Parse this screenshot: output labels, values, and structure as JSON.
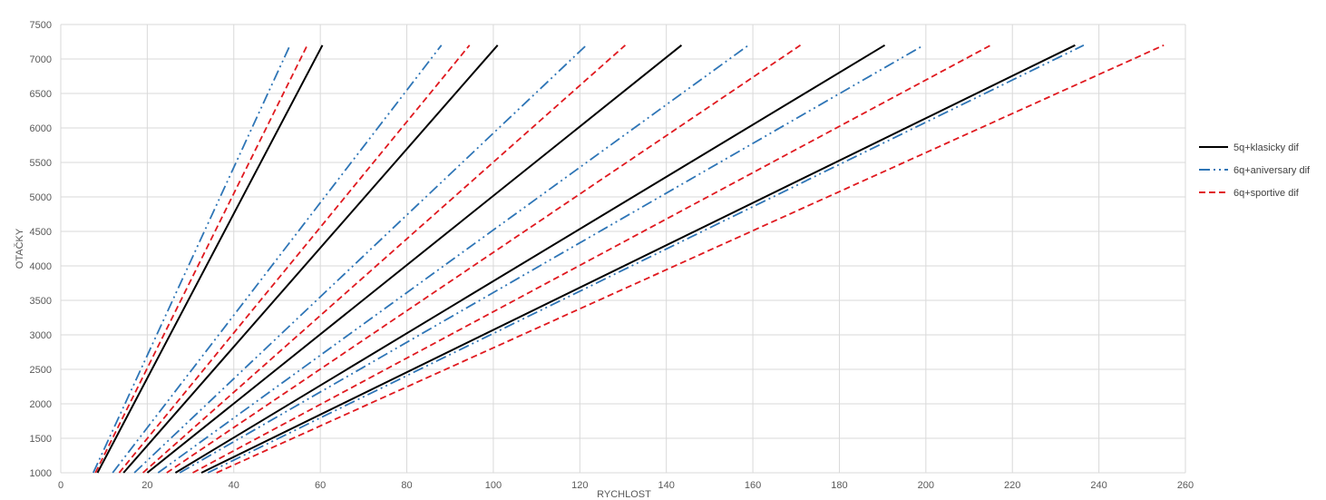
{
  "chart_data": {
    "type": "line",
    "xlabel": "RYCHLOST",
    "ylabel": "OTAČKY",
    "xlim": [
      0,
      260
    ],
    "ylim": [
      1000,
      7500
    ],
    "x_ticks": [
      0,
      20,
      40,
      60,
      80,
      100,
      120,
      140,
      160,
      180,
      200,
      220,
      240,
      260
    ],
    "y_ticks": [
      1000,
      1500,
      2000,
      2500,
      3000,
      3500,
      4000,
      4500,
      5000,
      5500,
      6000,
      6500,
      7000,
      7500
    ],
    "grid": true,
    "legend_position": "right",
    "series": [
      {
        "name": "5q+klasicky dif",
        "color": "#000000",
        "dash": "solid",
        "lines": [
          [
            [
              8.5,
              1000
            ],
            [
              60.5,
              7200
            ]
          ],
          [
            [
              14.5,
              1000
            ],
            [
              101,
              7200
            ]
          ],
          [
            [
              20,
              1000
            ],
            [
              143.5,
              7200
            ]
          ],
          [
            [
              26.5,
              1000
            ],
            [
              190.5,
              7200
            ]
          ],
          [
            [
              32.5,
              1000
            ],
            [
              234.5,
              7200
            ]
          ]
        ]
      },
      {
        "name": "6q+aniversary dif",
        "color": "#2e75b6",
        "dash": "dash-dot-dot",
        "lines": [
          [
            [
              7.5,
              1000
            ],
            [
              53,
              7200
            ]
          ],
          [
            [
              12,
              1000
            ],
            [
              88,
              7200
            ]
          ],
          [
            [
              17,
              1000
            ],
            [
              121.5,
              7200
            ]
          ],
          [
            [
              22.5,
              1000
            ],
            [
              159,
              7200
            ]
          ],
          [
            [
              27.5,
              1000
            ],
            [
              199.5,
              7200
            ]
          ],
          [
            [
              34,
              1000
            ],
            [
              236.5,
              7200
            ]
          ]
        ]
      },
      {
        "name": "6q+sportive dif",
        "color": "#e0191f",
        "dash": "dashed",
        "lines": [
          [
            [
              8,
              1000
            ],
            [
              57,
              7200
            ]
          ],
          [
            [
              13.5,
              1000
            ],
            [
              94.5,
              7200
            ]
          ],
          [
            [
              19,
              1000
            ],
            [
              130.5,
              7200
            ]
          ],
          [
            [
              24.5,
              1000
            ],
            [
              171,
              7200
            ]
          ],
          [
            [
              30.5,
              1000
            ],
            [
              215,
              7200
            ]
          ],
          [
            [
              36,
              1000
            ],
            [
              255,
              7200
            ]
          ]
        ]
      }
    ]
  }
}
